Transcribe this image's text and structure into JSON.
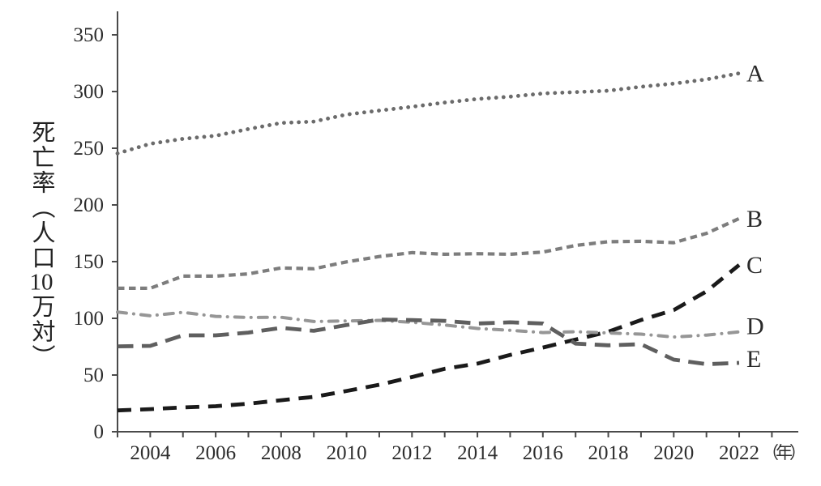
{
  "figure": {
    "y_axis_title": "死亡率（人口10万対）",
    "y_axis_title_parts": [
      "死亡率（人口",
      "10",
      "万対）"
    ],
    "x_unit_label": "（年）"
  },
  "chart_data": {
    "type": "line",
    "title": "",
    "ylabel": "死亡率（人口10万対）",
    "xlabel": "年",
    "ylim": [
      0,
      370
    ],
    "yticks": [
      0,
      50,
      100,
      150,
      200,
      250,
      300,
      350
    ],
    "grid": false,
    "legend_position": "labels at right end of each line",
    "x": [
      2003,
      2004,
      2005,
      2006,
      2007,
      2008,
      2009,
      2010,
      2011,
      2012,
      2013,
      2014,
      2015,
      2016,
      2017,
      2018,
      2019,
      2020,
      2021,
      2022
    ],
    "x_labeled_ticks": [
      2004,
      2006,
      2008,
      2010,
      2012,
      2014,
      2016,
      2018,
      2020,
      2022
    ],
    "x_minor_tick_every_year": true,
    "axis_color": "#4a4a4a",
    "text_color": "#2e2e2e",
    "series": [
      {
        "name": "A",
        "style": "dotted",
        "color": "#6b6b6b",
        "values": [
          245.4,
          253.9,
          258.3,
          261.0,
          266.9,
          272.3,
          273.5,
          279.7,
          283.2,
          286.6,
          290.3,
          293.4,
          295.5,
          298.3,
          299.5,
          300.7,
          304.2,
          307.0,
          310.7,
          316.1
        ]
      },
      {
        "name": "B",
        "style": "dashed-short",
        "color": "#7d7d7d",
        "values": [
          126.5,
          126.5,
          137.2,
          137.2,
          139.2,
          144.4,
          143.7,
          149.8,
          154.5,
          157.9,
          156.5,
          157.0,
          156.5,
          158.4,
          164.3,
          167.6,
          167.9,
          166.7,
          174.9,
          188.0
        ]
      },
      {
        "name": "C",
        "style": "dashed-long",
        "color": "#1a1a1a",
        "values": [
          18.8,
          19.9,
          21.4,
          22.5,
          24.7,
          27.8,
          30.7,
          35.9,
          41.4,
          48.2,
          55.5,
          60.1,
          67.7,
          74.2,
          81.3,
          88.2,
          98.5,
          107.3,
          123.8,
          147.1
        ]
      },
      {
        "name": "D",
        "style": "dash-dot",
        "color": "#969696",
        "values": [
          105.5,
          102.3,
          105.3,
          101.7,
          100.8,
          100.9,
          97.2,
          97.7,
          98.2,
          96.5,
          94.1,
          91.1,
          89.4,
          87.4,
          88.2,
          87.1,
          86.1,
          83.5,
          85.2,
          88.1
        ]
      },
      {
        "name": "E",
        "style": "dashed-xlong",
        "color": "#5f5f5f",
        "values": [
          75.3,
          75.7,
          85.0,
          85.0,
          87.4,
          91.6,
          89.0,
          94.1,
          98.9,
          98.4,
          97.8,
          95.4,
          96.5,
          95.4,
          77.7,
          76.2,
          77.2,
          63.6,
          59.6,
          60.7
        ]
      }
    ]
  }
}
